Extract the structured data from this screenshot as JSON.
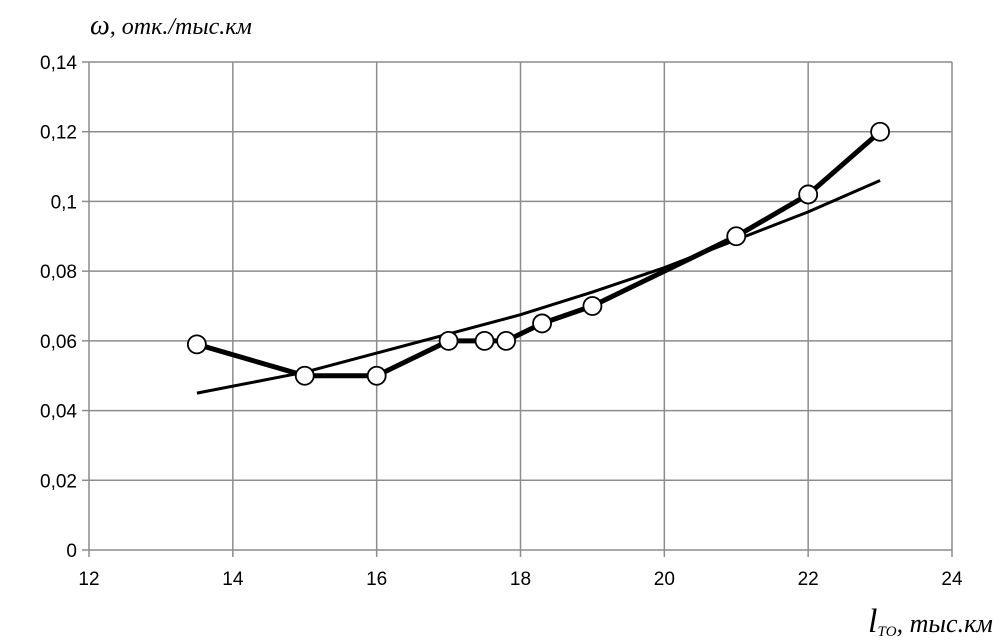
{
  "chart_data": {
    "type": "line",
    "ylabel": "ω, отк./тыс.км",
    "xlabel": "l_ТО, тыс.км",
    "ylabel_symbol": "ω",
    "ylabel_rest": ", отк./тыс.км",
    "xlabel_symbol": "l",
    "xlabel_subscript": "ТО",
    "xlabel_rest": ", тыс.км",
    "xlim": [
      12,
      24
    ],
    "ylim": [
      0,
      0.14
    ],
    "xticks": [
      "12",
      "14",
      "16",
      "18",
      "20",
      "22",
      "24"
    ],
    "yticks": [
      "0",
      "0,02",
      "0,04",
      "0,06",
      "0,08",
      "0,1",
      "0,12",
      "0,14"
    ],
    "grid": true,
    "series": [
      {
        "x": [
          13.5,
          15,
          16,
          17,
          17.5,
          17.8,
          18.3,
          19,
          21,
          22,
          23
        ],
        "y": [
          0.059,
          0.05,
          0.05,
          0.06,
          0.06,
          0.06,
          0.065,
          0.07,
          0.09,
          0.102,
          0.12
        ],
        "color": "#000000",
        "marker": "circle-open"
      },
      {
        "type": "trendline",
        "x": [
          13.5,
          15,
          16,
          17,
          18,
          19,
          20,
          21,
          22,
          23
        ],
        "y": [
          0.045,
          0.051,
          0.0565,
          0.062,
          0.0675,
          0.074,
          0.081,
          0.089,
          0.097,
          0.106
        ],
        "color": "#000000"
      }
    ]
  }
}
